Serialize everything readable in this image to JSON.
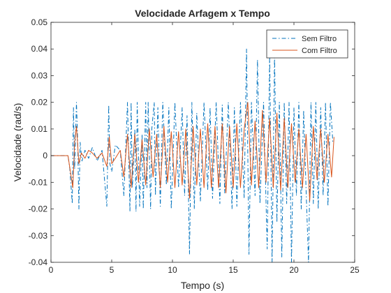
{
  "chart_data": {
    "type": "line",
    "title": "Velocidade Arfagem x Tempo",
    "xlabel": "Tempo (s)",
    "ylabel": "Velocidade (rad/s)",
    "xlim": [
      0,
      25
    ],
    "ylim": [
      -0.04,
      0.05
    ],
    "xticks": [
      0,
      5,
      10,
      15,
      20,
      25
    ],
    "xtick_labels": [
      "0",
      "5",
      "10",
      "15",
      "20",
      "25"
    ],
    "yticks": [
      -0.04,
      -0.03,
      -0.02,
      -0.01,
      0,
      0.01,
      0.02,
      0.03,
      0.04,
      0.05
    ],
    "ytick_labels": [
      "-0.04",
      "-0.03",
      "-0.02",
      "-0.01",
      "0",
      "0.01",
      "0.02",
      "0.03",
      "0.04",
      "0.05"
    ],
    "grid": false,
    "legend_position": "top-right",
    "series": [
      {
        "name": "Sem Filtro",
        "color": "#0072BD",
        "line_style": "dash-dot",
        "x": [
          0,
          1.4,
          1.55,
          1.75,
          1.85,
          1.95,
          2.1,
          2.2,
          2.3,
          2.4,
          2.55,
          2.8,
          3.1,
          3.4,
          3.8,
          4.2,
          4.6,
          4.75,
          4.85,
          5.0,
          5.3,
          5.7,
          6.0,
          6.3,
          6.5,
          6.6,
          6.7,
          6.9,
          7.0,
          7.1,
          7.3,
          7.5,
          7.6,
          7.8,
          7.9,
          8.0,
          8.2,
          8.3,
          8.5,
          8.6,
          8.8,
          9.0,
          9.2,
          9.5,
          9.7,
          9.9,
          10.2,
          10.5,
          10.8,
          11.0,
          11.2,
          11.4,
          11.6,
          11.8,
          12.0,
          12.3,
          12.6,
          12.9,
          13.1,
          13.3,
          13.6,
          13.9,
          14.1,
          14.3,
          14.6,
          14.9,
          15.1,
          15.3,
          15.6,
          15.9,
          16.1,
          16.3,
          16.5,
          16.8,
          17.0,
          17.2,
          17.5,
          17.8,
          18.0,
          18.2,
          18.4,
          18.6,
          18.8,
          19.0,
          19.2,
          19.4,
          19.6,
          19.8,
          20.0,
          20.2,
          20.4,
          20.6,
          20.8,
          21.0,
          21.2,
          21.4,
          21.6,
          21.8,
          22.0,
          22.2,
          22.4,
          22.6,
          22.8,
          23.0,
          23.2
        ],
        "y": [
          0,
          0,
          -0.005,
          -0.018,
          0.018,
          -0.005,
          0.02,
          0.005,
          -0.02,
          0.005,
          -0.002,
          0.002,
          -0.001,
          0.003,
          -0.002,
          0.002,
          -0.019,
          0.019,
          -0.003,
          -0.006,
          0.004,
          0.002,
          -0.015,
          0.02,
          -0.021,
          0.02,
          -0.012,
          0.01,
          -0.021,
          0.02,
          -0.019,
          0.008,
          -0.02,
          0.02,
          -0.012,
          0.02,
          -0.02,
          0.01,
          0.02,
          -0.015,
          0.018,
          -0.019,
          0.02,
          -0.011,
          0.018,
          -0.02,
          0.02,
          -0.012,
          0.018,
          -0.015,
          0.015,
          -0.037,
          0.02,
          -0.02,
          0.016,
          -0.017,
          0.02,
          -0.013,
          0.018,
          -0.016,
          0.02,
          -0.018,
          0.019,
          -0.014,
          0.02,
          -0.02,
          0.018,
          -0.019,
          0.02,
          -0.016,
          0.04,
          -0.037,
          0.02,
          -0.015,
          0.036,
          -0.018,
          0.02,
          -0.035,
          0.038,
          -0.04,
          0.038,
          -0.025,
          0.02,
          -0.038,
          0.02,
          -0.018,
          0.02,
          -0.04,
          0.018,
          -0.015,
          0.02,
          -0.02,
          0.017,
          -0.013,
          -0.04,
          0.02,
          -0.018,
          0.02,
          -0.02,
          0.018,
          -0.015,
          0.02,
          -0.019,
          0.02,
          0.005
        ]
      },
      {
        "name": "Com Filtro",
        "color": "#D95319",
        "line_style": "solid",
        "x": [
          0,
          1.4,
          1.6,
          1.8,
          1.95,
          2.1,
          2.3,
          2.5,
          2.8,
          3.1,
          3.4,
          3.8,
          4.2,
          4.6,
          4.8,
          5.0,
          5.3,
          5.7,
          6.0,
          6.3,
          6.6,
          6.9,
          7.2,
          7.5,
          7.8,
          8.1,
          8.4,
          8.7,
          9.0,
          9.3,
          9.6,
          9.9,
          10.2,
          10.5,
          10.8,
          11.1,
          11.4,
          11.7,
          12.0,
          12.3,
          12.6,
          12.9,
          13.2,
          13.5,
          13.8,
          14.1,
          14.4,
          14.7,
          15.0,
          15.3,
          15.6,
          15.9,
          16.2,
          16.5,
          16.8,
          17.1,
          17.4,
          17.7,
          18.0,
          18.3,
          18.6,
          18.9,
          19.2,
          19.5,
          19.8,
          20.1,
          20.4,
          20.7,
          21.0,
          21.3,
          21.6,
          21.9,
          22.2,
          22.5,
          22.8,
          23.1,
          23.3
        ],
        "y": [
          0,
          0,
          -0.006,
          -0.012,
          0.005,
          0.011,
          -0.003,
          0.001,
          -0.001,
          0.002,
          0.001,
          -0.001,
          0.001,
          -0.004,
          0.007,
          -0.003,
          -0.001,
          0.002,
          -0.008,
          0.008,
          -0.012,
          0.008,
          -0.01,
          0.006,
          -0.011,
          0.01,
          -0.008,
          0.008,
          -0.012,
          0.011,
          -0.01,
          0.009,
          -0.012,
          0.009,
          -0.011,
          0.01,
          -0.016,
          0.011,
          -0.011,
          0.01,
          -0.012,
          0.012,
          -0.012,
          0.011,
          -0.012,
          0.012,
          -0.014,
          0.011,
          -0.012,
          0.012,
          -0.012,
          0.01,
          0.02,
          -0.011,
          0.013,
          -0.012,
          0.017,
          -0.01,
          0.014,
          -0.012,
          0.016,
          -0.013,
          0.014,
          -0.012,
          0.012,
          -0.01,
          0.01,
          -0.012,
          0.008,
          -0.017,
          0.011,
          -0.009,
          0.01,
          -0.01,
          0.008,
          -0.008,
          0.007
        ]
      }
    ]
  }
}
